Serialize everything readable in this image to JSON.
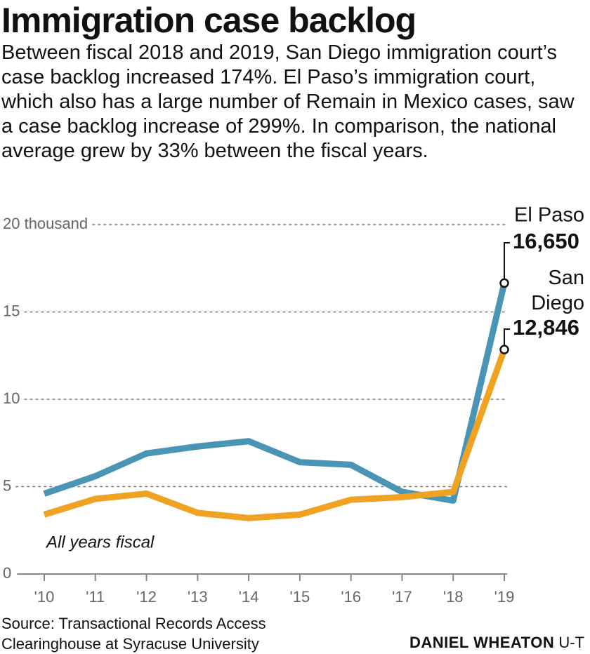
{
  "chart_data": {
    "type": "line",
    "title": "Immigration case backlog",
    "subtitle": "Between fiscal 2018 and 2019, San Diego immigration court’s case backlog increased 174%. El Paso’s immigration court, which also has a large number of Remain in Mexico cases, saw a case backlog increase of 299%. In comparison, the national average grew by 33% between the fiscal years.",
    "categories": [
      "'10",
      "'11",
      "'12",
      "'13",
      "'14",
      "'15",
      "'16",
      "'17",
      "'18",
      "'19"
    ],
    "series": [
      {
        "name": "El Paso",
        "color": "#4a95b5",
        "values": [
          4.6,
          5.6,
          6.9,
          7.3,
          7.6,
          6.4,
          6.25,
          4.7,
          4.2,
          16.65
        ],
        "value_labels": [
          null,
          null,
          null,
          null,
          null,
          null,
          null,
          null,
          null,
          "16,650"
        ]
      },
      {
        "name": "San Diego",
        "color": "#f0a323",
        "values": [
          3.4,
          4.3,
          4.6,
          3.5,
          3.2,
          3.4,
          4.25,
          4.4,
          4.7,
          12.846
        ],
        "value_labels": [
          null,
          null,
          null,
          null,
          null,
          null,
          null,
          null,
          null,
          "12,846"
        ]
      }
    ],
    "ylim": [
      0,
      20
    ],
    "yticks": [
      0,
      5,
      10,
      15,
      {
        "value": 20,
        "label": "20 thousand"
      }
    ],
    "grid": true,
    "annotation": "All years fiscal",
    "source": "Source: Transactional Records Access Clearinghouse at Syracuse University",
    "credit": {
      "author": "DANIEL WHEATON",
      "org": "U-T"
    }
  }
}
